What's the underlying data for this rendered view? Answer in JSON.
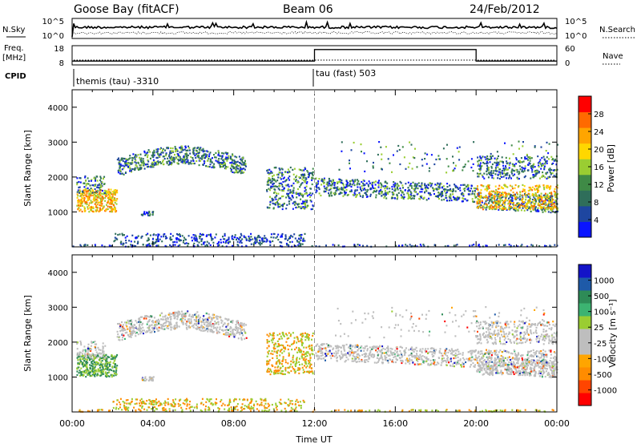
{
  "header": {
    "station": "Goose Bay (fitACF)",
    "beam": "Beam 06",
    "date": "24/Feb/2012"
  },
  "labels": {
    "nsky": "N.Sky",
    "nsearch": "N.Search",
    "freq": "Freq.",
    "mhz": "[MHz]",
    "nave": "Nave",
    "cpid": "CPID",
    "slant_range": "Slant Range [km]",
    "time_ut": "Time UT",
    "power": "Power [dB]",
    "velocity": "Velocity [m s⁻¹]"
  },
  "cpid": {
    "left": "themis (tau) -3310",
    "right": "tau (fast) 503",
    "switch_hour": 12
  },
  "colors": {
    "power": [
      "#0a14ff",
      "#1e46a0",
      "#2f6e5a",
      "#3f8a46",
      "#9acd32",
      "#ffd700",
      "#ffa500",
      "#ff6a00",
      "#ff0000"
    ],
    "velocity": [
      "#ff0000",
      "#ff4500",
      "#ff8c00",
      "#ffa500",
      "#bebebe",
      "#bebebe",
      "#9acd32",
      "#3cb371",
      "#2e8b57",
      "#1e5aa8",
      "#1414c8"
    ],
    "ground": "#bebebe"
  },
  "chart_data": [
    {
      "type": "line",
      "panel": "noise",
      "y_ticks": [
        "10^5",
        "10^0"
      ],
      "y2_ticks": [
        "10^5",
        "10^0"
      ],
      "series": [
        {
          "name": "N.Sky",
          "style": "solid"
        },
        {
          "name": "N.Search",
          "style": "dotted"
        }
      ]
    },
    {
      "type": "line",
      "panel": "frequency",
      "y_ticks": [
        "18",
        "8"
      ],
      "y2_ticks": [
        "60",
        "0"
      ],
      "freq_x": [
        0,
        0.2,
        12,
        12,
        20,
        20,
        24
      ],
      "freq_y": [
        10,
        10,
        10,
        16,
        16,
        10,
        10
      ]
    },
    {
      "type": "scatter",
      "panel": "power",
      "x_ticks": [
        "00:00",
        "04:00",
        "08:00",
        "12:00",
        "16:00",
        "20:00",
        "00:00"
      ],
      "y_ticks": [
        1000,
        2000,
        3000,
        4000
      ],
      "ylim": [
        0,
        4500
      ],
      "xlim": [
        0,
        24
      ],
      "colorbar_ticks": [
        4,
        8,
        12,
        16,
        20,
        24,
        28
      ]
    },
    {
      "type": "scatter",
      "panel": "velocity",
      "x_ticks": [
        "00:00",
        "04:00",
        "08:00",
        "12:00",
        "16:00",
        "20:00",
        "00:00"
      ],
      "y_ticks": [
        1000,
        2000,
        3000,
        4000
      ],
      "ylim": [
        0,
        4500
      ],
      "xlim": [
        0,
        24
      ],
      "colorbar_ticks": [
        -1000,
        -500,
        -100,
        -25,
        25,
        100,
        500,
        1000
      ]
    }
  ]
}
